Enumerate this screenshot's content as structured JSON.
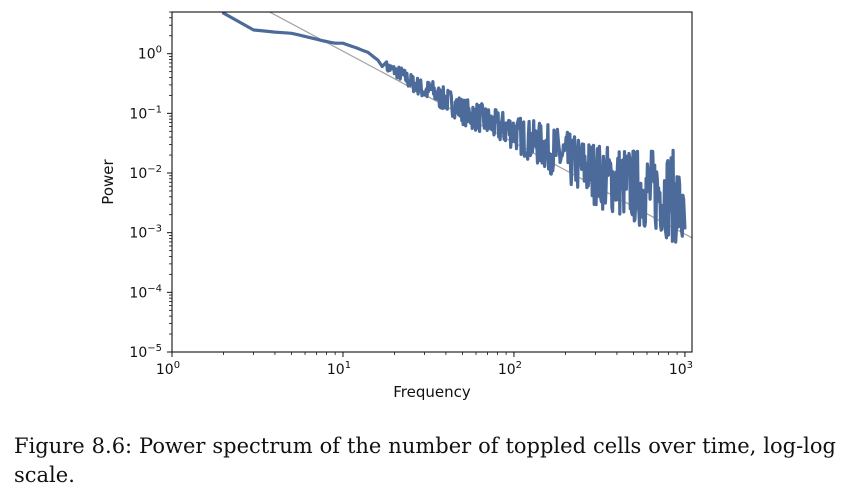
{
  "caption": {
    "text": "Figure 8.6: Power spectrum of the number of toppled cells over time, log-log scale."
  },
  "chart_data": {
    "type": "line",
    "title": "",
    "xlabel": "Frequency",
    "ylabel": "Power",
    "xscale": "log",
    "yscale": "log",
    "xlim": [
      1,
      1100
    ],
    "ylim": [
      1e-05,
      5
    ],
    "x_ticks": [
      {
        "base": "10",
        "exp": "0"
      },
      {
        "base": "10",
        "exp": "1"
      },
      {
        "base": "10",
        "exp": "2"
      },
      {
        "base": "10",
        "exp": "3"
      }
    ],
    "y_ticks": [
      {
        "base": "10",
        "exp": "0"
      },
      {
        "base": "10",
        "exp": "−1"
      },
      {
        "base": "10",
        "exp": "−2"
      },
      {
        "base": "10",
        "exp": "−3"
      },
      {
        "base": "10",
        "exp": "−4"
      },
      {
        "base": "10",
        "exp": "−5"
      }
    ],
    "grid": false,
    "legend": "none",
    "series": [
      {
        "color": "#4c6b9a",
        "x": [
          2,
          3,
          4,
          5,
          6,
          7,
          8,
          9,
          10,
          12,
          14,
          16,
          18,
          20,
          22,
          25,
          28,
          30,
          33,
          36,
          40,
          45,
          50,
          56,
          63,
          71,
          80,
          90,
          100,
          112,
          126,
          141,
          158,
          178,
          200,
          224,
          251,
          282,
          316,
          355,
          398,
          447,
          501,
          562,
          631,
          708,
          794,
          891,
          1000
        ],
        "y": [
          4.8,
          2.5,
          2.3,
          2.2,
          1.95,
          1.75,
          1.6,
          1.5,
          1.5,
          1.25,
          1.05,
          0.78,
          0.6,
          0.52,
          0.45,
          0.33,
          0.28,
          0.23,
          0.25,
          0.19,
          0.17,
          0.14,
          0.11,
          0.095,
          0.085,
          0.07,
          0.06,
          0.055,
          0.05,
          0.04,
          0.035,
          0.03,
          0.026,
          0.022,
          0.018,
          0.015,
          0.013,
          0.011,
          0.009,
          0.008,
          0.0075,
          0.0068,
          0.006,
          0.0055,
          0.0052,
          0.0048,
          0.0045,
          0.0038,
          0.0012
        ],
        "spread": [
          0,
          0,
          0,
          0,
          0,
          0,
          0,
          0,
          0,
          0,
          0,
          0,
          0.2,
          0.2,
          0.25,
          0.3,
          0.3,
          0.35,
          0.35,
          0.4,
          0.4,
          0.45,
          0.45,
          0.5,
          0.5,
          0.55,
          0.55,
          0.6,
          0.6,
          0.65,
          0.7,
          0.75,
          0.8,
          0.85,
          0.9,
          0.95,
          1.0,
          1.05,
          1.1,
          1.15,
          1.2,
          1.25,
          1.3,
          1.35,
          1.4,
          1.45,
          1.5,
          1.6,
          1.0
        ]
      }
    ],
    "reference_line": {
      "color": "#a6a6a6",
      "x": [
        1,
        1100
      ],
      "y": [
        37.5,
        0.00082
      ]
    }
  }
}
